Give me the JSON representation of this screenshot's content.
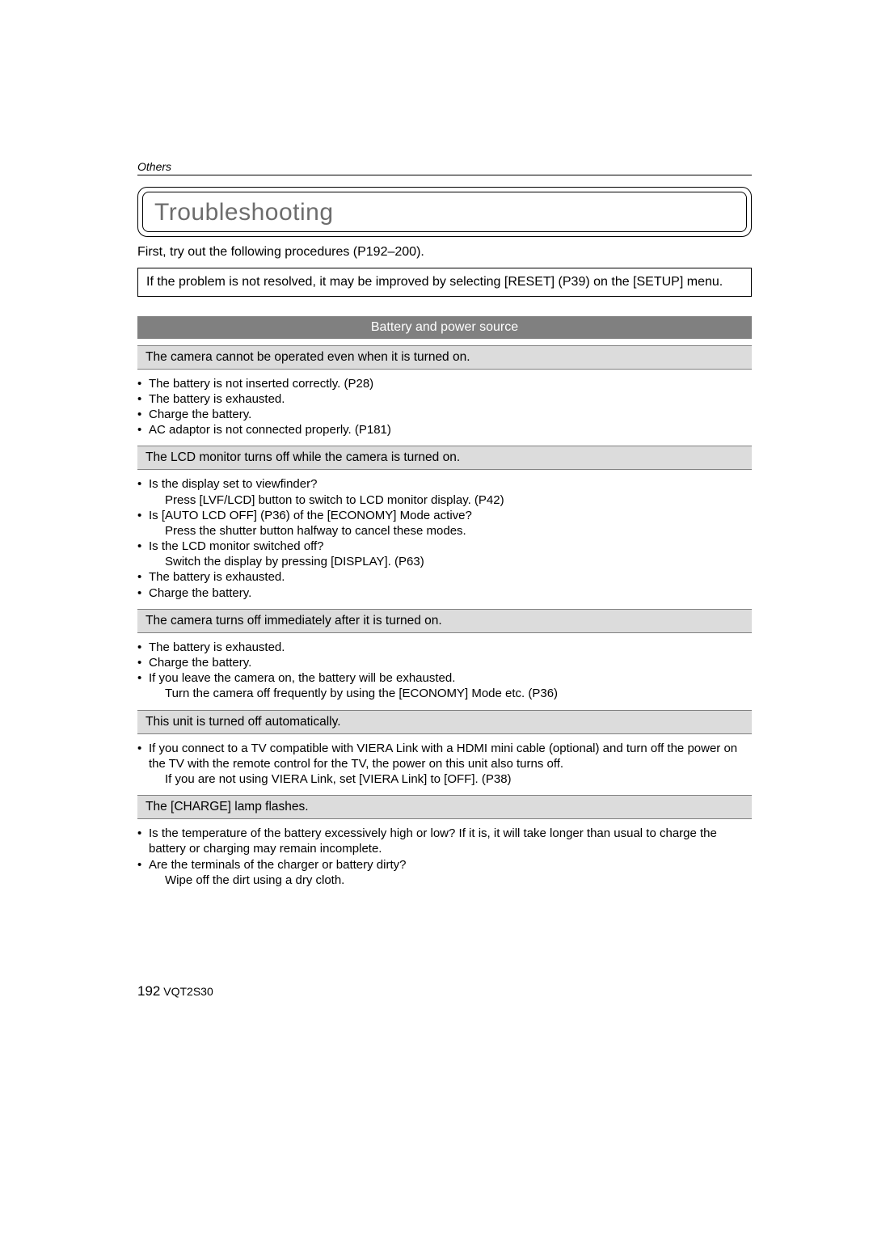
{
  "header": {
    "section": "Others"
  },
  "title": "Troubleshooting",
  "intro": "First, try out the following procedures (P192–200).",
  "noteBox": "If the problem is not resolved, it may be improved by selecting [RESET] (P39) on the [SETUP] menu.",
  "category": "Battery and power source",
  "issues": [
    {
      "title": "The camera cannot be operated even when it is turned on.",
      "lines": [
        {
          "t": "b",
          "text": "The battery is not inserted correctly. (P28)"
        },
        {
          "t": "b",
          "text": "The battery is exhausted."
        },
        {
          "t": "b",
          "text": "Charge the battery."
        },
        {
          "t": "b",
          "text": "AC adaptor is not connected properly. (P181)"
        }
      ]
    },
    {
      "title": "The LCD monitor turns off while the camera is turned on.",
      "lines": [
        {
          "t": "b",
          "text": "Is the display set to viewfinder?"
        },
        {
          "t": "s",
          "text": "Press [LVF/LCD] button to switch to LCD monitor display. (P42)"
        },
        {
          "t": "b",
          "text": "Is [AUTO LCD OFF] (P36) of the [ECONOMY] Mode active?"
        },
        {
          "t": "s",
          "text": "Press the shutter button halfway to cancel these modes."
        },
        {
          "t": "b",
          "text": "Is the LCD monitor switched off?"
        },
        {
          "t": "s",
          "text": "Switch the display by pressing [DISPLAY]. (P63)"
        },
        {
          "t": "b",
          "text": "The battery is exhausted."
        },
        {
          "t": "b",
          "text": "Charge the battery."
        }
      ]
    },
    {
      "title": "The camera turns off immediately after it is turned on.",
      "lines": [
        {
          "t": "b",
          "text": "The battery is exhausted."
        },
        {
          "t": "b",
          "text": "Charge the battery."
        },
        {
          "t": "b",
          "text": "If you leave the camera on, the battery will be exhausted."
        },
        {
          "t": "s",
          "text": "Turn the camera off frequently by using the [ECONOMY] Mode etc. (P36)"
        }
      ]
    },
    {
      "title": "This unit is turned off automatically.",
      "lines": [
        {
          "t": "b",
          "text": "If you connect to a TV compatible with VIERA Link with a HDMI mini cable (optional) and turn off the power on the TV with the remote control for the TV, the power on this unit also turns off."
        },
        {
          "t": "s",
          "text": "If you are not using VIERA Link, set [VIERA Link] to [OFF]. (P38)"
        }
      ]
    },
    {
      "title": "The [CHARGE] lamp flashes.",
      "lines": [
        {
          "t": "b",
          "text": "Is the temperature of the battery excessively high or low? If it is, it will take longer than usual to charge the battery or charging may remain incomplete."
        },
        {
          "t": "b",
          "text": "Are the terminals of the charger or battery dirty?"
        },
        {
          "t": "s",
          "text": "Wipe off the dirt using a dry cloth."
        }
      ]
    }
  ],
  "footer": {
    "pageNumber": "192",
    "docCode": "VQT2S30"
  },
  "colors": {
    "titleText": "#6d6d6d",
    "categoryBg": "#808080",
    "categoryText": "#ffffff",
    "issueBg": "#dcdcdc",
    "issueBorder": "#808080",
    "pageBg": "#ffffff",
    "text": "#000000"
  }
}
